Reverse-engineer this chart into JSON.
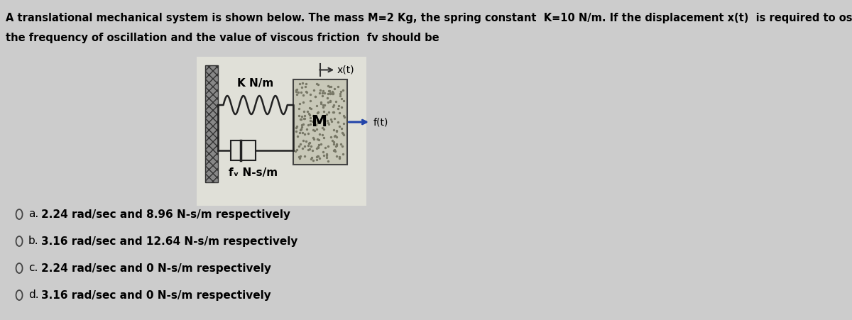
{
  "title_line1": "A translational mechanical system is shown below. The mass M=2 Kg, the spring constant  K=10 N/m. If the displacement x(t)  is required to oscillate indefinitely,",
  "title_line2": "the frequency of oscillation and the value of viscous friction  fv should be",
  "bg_color": "#cccccc",
  "panel_color": "#e0e0d8",
  "spring_label": "K N/m",
  "damper_label": "fᵥ N-s/m",
  "mass_label": "M",
  "options": [
    {
      "letter": "a.",
      "text": "2.24 rad/sec and 8.96 N-s/m respectively"
    },
    {
      "letter": "b.",
      "text": "3.16 rad/sec and 12.64 N-s/m respectively"
    },
    {
      "letter": "c.",
      "text": "2.24 rad/sec and 0 N-s/m respectively"
    },
    {
      "letter": "d.",
      "text": "3.16 rad/sec and 0 N-s/m respectively"
    }
  ],
  "fontsize_title": 10.5,
  "fontsize_options": 11,
  "fontsize_diagram": 10,
  "fontsize_label": 9
}
